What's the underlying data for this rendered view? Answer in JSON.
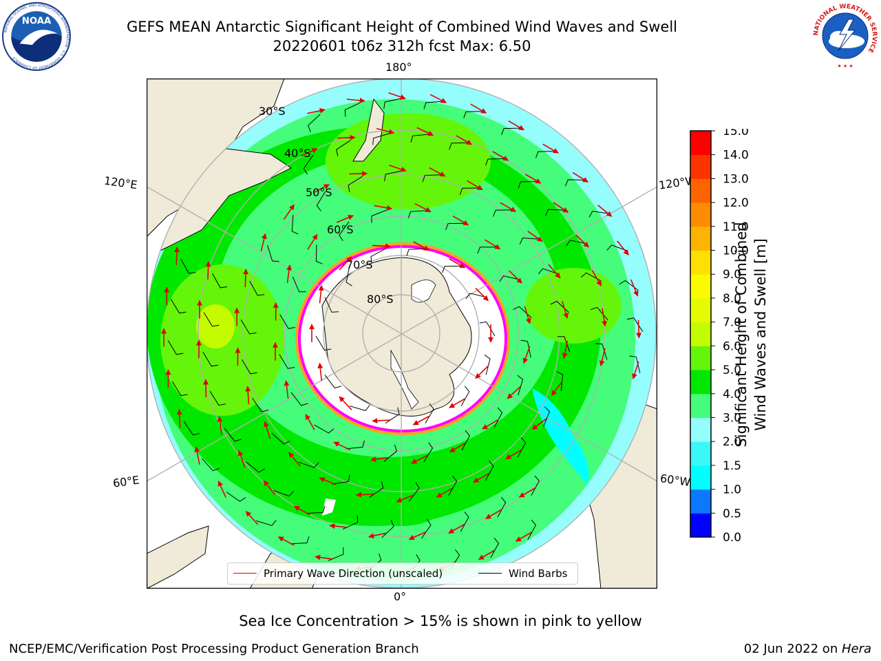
{
  "title": {
    "line1": "GEFS MEAN Antarctic Significant Height of Combined Wind Waves and Swell",
    "line2": "20220601 t06z 312h fcst   Max: 6.50"
  },
  "logos": {
    "noaa_text": "NOAA",
    "noaa_ring": "NATIONAL OCEANIC AND ATMOSPHERIC ADMINISTRATION · U.S. DEPARTMENT OF COMMERCE",
    "nws_ring": "NATIONAL WEATHER SERVICE"
  },
  "map": {
    "longitude_labels": {
      "top": "180°",
      "bottom": "0°",
      "left_upper": "120°E",
      "left_lower": "60°E",
      "right_upper": "120°W",
      "right_lower": "60°W"
    },
    "latitude_labels": [
      "30°S",
      "40°S",
      "50°S",
      "60°S",
      "70°S",
      "80°S"
    ],
    "legend": {
      "wave_label": "Primary Wave Direction (unscaled)",
      "barb_label": "Wind Barbs"
    },
    "colors": {
      "land": "#efebd8",
      "ice": "#ffffff",
      "grid": "#b0b0b0",
      "wave_arrow": "#e00000",
      "barb": "#000000",
      "ice_edge": [
        "#ff00ff",
        "#ffa020",
        "#ffff00"
      ]
    }
  },
  "colorbar": {
    "label_line1": "Significant Height of Combined",
    "label_line2": "Wind Waves and Swell [m]",
    "ticks": [
      "0.0",
      "0.5",
      "1.0",
      "1.5",
      "2.0",
      "3.0",
      "4.0",
      "5.0",
      "6.0",
      "7.0",
      "8.0",
      "9.0",
      "10.0",
      "11.0",
      "12.0",
      "13.0",
      "14.0",
      "15.0"
    ],
    "colors": [
      "#0000ff",
      "#0a78ff",
      "#00ffff",
      "#3cf7f7",
      "#96fdfd",
      "#45fd7a",
      "#00e800",
      "#64f50a",
      "#c5fb00",
      "#e6fb00",
      "#fbfb00",
      "#fde000",
      "#fdb400",
      "#fd8c00",
      "#fd6400",
      "#fd3400",
      "#fd0000"
    ]
  },
  "note": "Sea Ice Concentration > 15% is shown in pink to yellow",
  "footer": {
    "left": "NCEP/EMC/Verification Post Processing Product Generation Branch",
    "right_prefix": "02 Jun 2022 on ",
    "right_host": "Hera"
  }
}
